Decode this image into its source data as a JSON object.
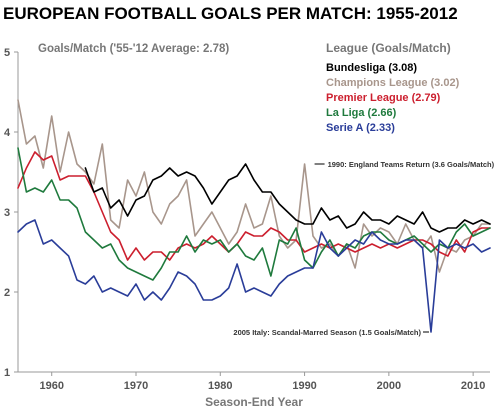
{
  "chart_data": {
    "type": "line",
    "title": "EUROPEAN FOOTBALL GOALS PER MATCH: 1955-2012",
    "subtitle": "Goals/Match ('55-'12 Average: 2.78)",
    "xlabel": "Season-End Year",
    "ylabel": "",
    "xlim": [
      1956,
      2012
    ],
    "ylim": [
      1,
      5
    ],
    "x_ticks": [
      1960,
      1970,
      1980,
      1990,
      2000,
      2010
    ],
    "y_ticks": [
      1,
      2,
      3,
      4,
      5
    ],
    "grid": false,
    "legend_title": "League (Goals/Match)",
    "legend_position": "top-right",
    "series": [
      {
        "name": "Bundesliga (3.08)",
        "color": "#000000",
        "x": [
          1964,
          1965,
          1966,
          1967,
          1968,
          1969,
          1970,
          1971,
          1972,
          1973,
          1974,
          1975,
          1976,
          1977,
          1978,
          1979,
          1980,
          1981,
          1982,
          1983,
          1984,
          1985,
          1986,
          1987,
          1988,
          1989,
          1990,
          1991,
          1992,
          1993,
          1994,
          1995,
          1996,
          1997,
          1998,
          1999,
          2000,
          2001,
          2002,
          2003,
          2004,
          2005,
          2006,
          2007,
          2008,
          2009,
          2010,
          2011,
          2012
        ],
        "values": [
          3.55,
          3.25,
          3.3,
          3.05,
          3.15,
          2.95,
          3.15,
          3.2,
          3.4,
          3.45,
          3.55,
          3.45,
          3.5,
          3.45,
          3.3,
          3.1,
          3.25,
          3.4,
          3.45,
          3.6,
          3.4,
          3.25,
          3.25,
          3.1,
          3.0,
          2.9,
          2.85,
          2.85,
          3.05,
          2.9,
          2.95,
          2.8,
          2.85,
          3.0,
          2.9,
          2.9,
          2.85,
          2.95,
          2.9,
          2.85,
          3.0,
          2.8,
          2.75,
          2.8,
          2.8,
          2.9,
          2.85,
          2.9,
          2.85
        ]
      },
      {
        "name": "Champions League (3.02)",
        "color": "#a8968c",
        "x": [
          1956,
          1957,
          1958,
          1959,
          1960,
          1961,
          1962,
          1963,
          1964,
          1965,
          1966,
          1967,
          1968,
          1969,
          1970,
          1971,
          1972,
          1973,
          1974,
          1975,
          1976,
          1977,
          1978,
          1979,
          1980,
          1981,
          1982,
          1983,
          1984,
          1985,
          1986,
          1987,
          1988,
          1989,
          1990,
          1991,
          1992,
          1993,
          1994,
          1995,
          1996,
          1997,
          1998,
          1999,
          2000,
          2001,
          2002,
          2003,
          2004,
          2005,
          2006,
          2007,
          2008,
          2009,
          2010,
          2011,
          2012
        ],
        "values": [
          4.4,
          3.85,
          3.95,
          3.55,
          4.2,
          3.5,
          4.0,
          3.6,
          3.5,
          3.35,
          3.85,
          2.9,
          2.8,
          3.4,
          3.2,
          3.5,
          3.0,
          2.85,
          3.1,
          3.2,
          3.4,
          2.7,
          2.85,
          3.0,
          2.8,
          2.6,
          2.75,
          3.1,
          2.8,
          2.85,
          3.2,
          2.7,
          2.55,
          2.65,
          3.6,
          2.7,
          2.55,
          2.6,
          2.45,
          2.6,
          2.3,
          2.85,
          2.7,
          2.8,
          2.75,
          2.6,
          2.85,
          2.65,
          2.55,
          2.7,
          2.25,
          2.55,
          2.5,
          2.65,
          2.7,
          2.85,
          2.85
        ]
      },
      {
        "name": "Premier League (2.79)",
        "color": "#cc1f2e",
        "x": [
          1956,
          1957,
          1958,
          1959,
          1960,
          1961,
          1962,
          1963,
          1964,
          1965,
          1966,
          1967,
          1968,
          1969,
          1970,
          1971,
          1972,
          1973,
          1974,
          1975,
          1976,
          1977,
          1978,
          1979,
          1980,
          1981,
          1982,
          1983,
          1984,
          1985,
          1986,
          1987,
          1988,
          1989,
          1990,
          1991,
          1992,
          1993,
          1994,
          1995,
          1996,
          1997,
          1998,
          1999,
          2000,
          2001,
          2002,
          2003,
          2004,
          2005,
          2006,
          2007,
          2008,
          2009,
          2010,
          2011,
          2012
        ],
        "values": [
          3.3,
          3.55,
          3.75,
          3.65,
          3.7,
          3.4,
          3.45,
          3.45,
          3.45,
          3.25,
          3.0,
          2.75,
          2.65,
          2.4,
          2.55,
          2.4,
          2.5,
          2.5,
          2.4,
          2.55,
          2.6,
          2.55,
          2.6,
          2.7,
          2.6,
          2.5,
          2.6,
          2.75,
          2.7,
          2.7,
          2.8,
          2.75,
          2.65,
          2.65,
          2.5,
          2.55,
          2.6,
          2.55,
          2.6,
          2.55,
          2.5,
          2.55,
          2.6,
          2.55,
          2.6,
          2.55,
          2.6,
          2.65,
          2.65,
          2.6,
          2.5,
          2.45,
          2.65,
          2.5,
          2.75,
          2.8,
          2.8
        ]
      },
      {
        "name": "La Liga (2.66)",
        "color": "#1f7a3d",
        "x": [
          1956,
          1957,
          1958,
          1959,
          1960,
          1961,
          1962,
          1963,
          1964,
          1965,
          1966,
          1967,
          1968,
          1969,
          1970,
          1971,
          1972,
          1973,
          1974,
          1975,
          1976,
          1977,
          1978,
          1979,
          1980,
          1981,
          1982,
          1983,
          1984,
          1985,
          1986,
          1987,
          1988,
          1989,
          1990,
          1991,
          1992,
          1993,
          1994,
          1995,
          1996,
          1997,
          1998,
          1999,
          2000,
          2001,
          2002,
          2003,
          2004,
          2005,
          2006,
          2007,
          2008,
          2009,
          2010,
          2011,
          2012
        ],
        "values": [
          3.8,
          3.25,
          3.3,
          3.25,
          3.4,
          3.15,
          3.15,
          3.05,
          2.75,
          2.65,
          2.55,
          2.6,
          2.4,
          2.3,
          2.25,
          2.2,
          2.15,
          2.3,
          2.5,
          2.5,
          2.7,
          2.5,
          2.65,
          2.6,
          2.65,
          2.5,
          2.6,
          2.45,
          2.4,
          2.55,
          2.2,
          2.65,
          2.6,
          2.8,
          2.4,
          2.3,
          2.5,
          2.65,
          2.45,
          2.6,
          2.55,
          2.7,
          2.75,
          2.75,
          2.65,
          2.6,
          2.65,
          2.7,
          2.6,
          2.5,
          2.6,
          2.55,
          2.75,
          2.85,
          2.7,
          2.75,
          2.8
        ]
      },
      {
        "name": "Serie A (2.33)",
        "color": "#2a3d99",
        "x": [
          1956,
          1957,
          1958,
          1959,
          1960,
          1961,
          1962,
          1963,
          1964,
          1965,
          1966,
          1967,
          1968,
          1969,
          1970,
          1971,
          1972,
          1973,
          1974,
          1975,
          1976,
          1977,
          1978,
          1979,
          1980,
          1981,
          1982,
          1983,
          1984,
          1985,
          1986,
          1987,
          1988,
          1989,
          1990,
          1991,
          1992,
          1993,
          1994,
          1995,
          1996,
          1997,
          1998,
          1999,
          2000,
          2001,
          2002,
          2003,
          2004,
          2005,
          2006,
          2007,
          2008,
          2009,
          2010,
          2011,
          2012
        ],
        "values": [
          2.75,
          2.85,
          2.9,
          2.6,
          2.65,
          2.55,
          2.45,
          2.15,
          2.1,
          2.2,
          2.0,
          2.05,
          2.0,
          1.95,
          2.1,
          1.9,
          2.0,
          1.9,
          2.05,
          2.25,
          2.2,
          2.1,
          1.9,
          1.9,
          1.95,
          2.05,
          2.35,
          2.0,
          2.05,
          2.0,
          1.95,
          2.1,
          2.2,
          2.25,
          2.3,
          2.3,
          2.75,
          2.55,
          2.45,
          2.55,
          2.65,
          2.6,
          2.75,
          2.65,
          2.6,
          2.6,
          2.65,
          2.65,
          2.55,
          1.5,
          2.65,
          2.55,
          2.6,
          2.55,
          2.6,
          2.5,
          2.55
        ]
      }
    ],
    "annotations": [
      {
        "text": "1990: England Teams Return (3.6 Goals/Match)",
        "x": 1990,
        "y": 3.6
      },
      {
        "text": "2005 Italy: Scandal-Marred Season (1.5 Goals/Match)",
        "x": 2005,
        "y": 1.5
      }
    ]
  }
}
